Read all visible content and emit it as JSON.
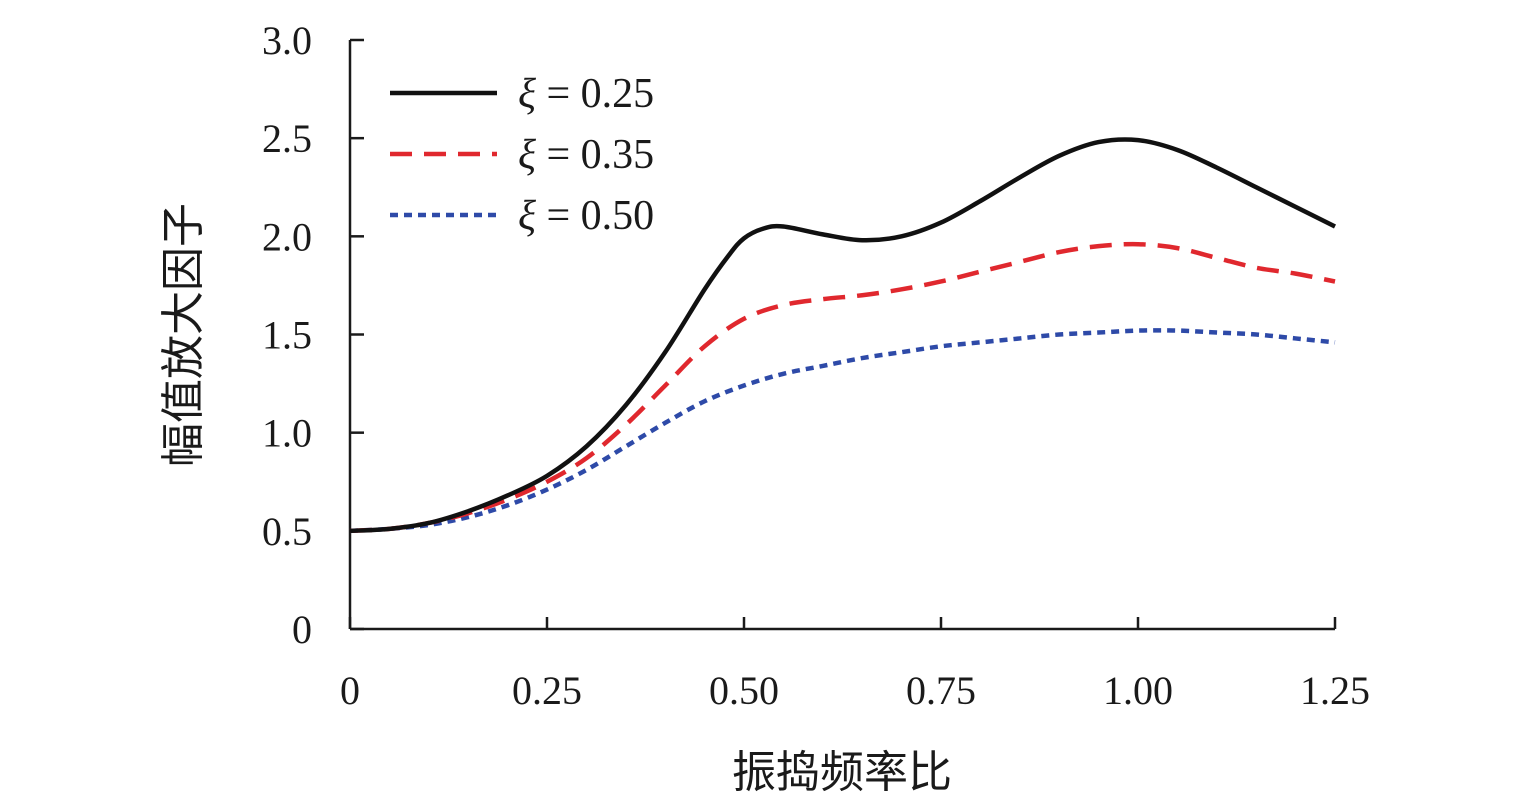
{
  "chart_data": {
    "type": "line",
    "title": "",
    "xlabel": "振捣频率比",
    "ylabel": "幅值放大因子",
    "xlim": [
      0,
      1.25
    ],
    "ylim": [
      0,
      3.0
    ],
    "xticks": [
      0,
      0.25,
      0.5,
      0.75,
      1.0,
      1.25
    ],
    "xtick_labels": [
      "0",
      "0.25",
      "0.50",
      "0.75",
      "1.00",
      "1.25"
    ],
    "yticks": [
      0,
      0.5,
      1.0,
      1.5,
      2.0,
      2.5,
      3.0
    ],
    "ytick_labels": [
      "0",
      "0.5",
      "1.0",
      "1.5",
      "2.0",
      "2.5",
      "3.0"
    ],
    "grid": false,
    "legend_position": "top-left",
    "series": [
      {
        "name": "ξ = 0.25",
        "legend_symbol": "ξ",
        "legend_value": "= 0.25",
        "color": "#111111",
        "dash": "solid",
        "x": [
          0,
          0.05,
          0.1,
          0.15,
          0.2,
          0.25,
          0.3,
          0.35,
          0.4,
          0.45,
          0.48,
          0.5,
          0.525,
          0.55,
          0.6,
          0.65,
          0.7,
          0.75,
          0.8,
          0.85,
          0.9,
          0.95,
          1.0,
          1.05,
          1.1,
          1.15,
          1.2,
          1.25
        ],
        "y": [
          0.5,
          0.51,
          0.54,
          0.6,
          0.68,
          0.78,
          0.93,
          1.14,
          1.41,
          1.73,
          1.9,
          1.99,
          2.04,
          2.05,
          2.01,
          1.98,
          2.0,
          2.07,
          2.18,
          2.3,
          2.41,
          2.48,
          2.49,
          2.44,
          2.35,
          2.25,
          2.15,
          2.05
        ]
      },
      {
        "name": "ξ = 0.35",
        "legend_symbol": "ξ",
        "legend_value": "= 0.35",
        "color": "#e0282e",
        "dash": "dashed",
        "x": [
          0,
          0.05,
          0.1,
          0.15,
          0.2,
          0.25,
          0.3,
          0.35,
          0.4,
          0.45,
          0.5,
          0.55,
          0.6,
          0.65,
          0.7,
          0.75,
          0.8,
          0.85,
          0.9,
          0.95,
          1.0,
          1.05,
          1.1,
          1.15,
          1.2,
          1.25
        ],
        "y": [
          0.5,
          0.51,
          0.54,
          0.59,
          0.66,
          0.75,
          0.87,
          1.04,
          1.24,
          1.44,
          1.58,
          1.65,
          1.68,
          1.7,
          1.73,
          1.77,
          1.82,
          1.87,
          1.92,
          1.95,
          1.96,
          1.94,
          1.89,
          1.84,
          1.81,
          1.77
        ]
      },
      {
        "name": "ξ = 0.50",
        "legend_symbol": "ξ",
        "legend_value": "= 0.50",
        "color": "#2e4aa8",
        "dash": "dotted",
        "x": [
          0,
          0.05,
          0.1,
          0.15,
          0.2,
          0.25,
          0.3,
          0.35,
          0.4,
          0.45,
          0.5,
          0.55,
          0.6,
          0.65,
          0.7,
          0.75,
          0.8,
          0.85,
          0.9,
          0.95,
          1.0,
          1.05,
          1.1,
          1.15,
          1.2,
          1.25
        ],
        "y": [
          0.5,
          0.51,
          0.53,
          0.57,
          0.63,
          0.71,
          0.81,
          0.93,
          1.05,
          1.16,
          1.24,
          1.3,
          1.34,
          1.38,
          1.41,
          1.44,
          1.46,
          1.48,
          1.5,
          1.51,
          1.52,
          1.52,
          1.51,
          1.5,
          1.48,
          1.46
        ]
      }
    ]
  }
}
